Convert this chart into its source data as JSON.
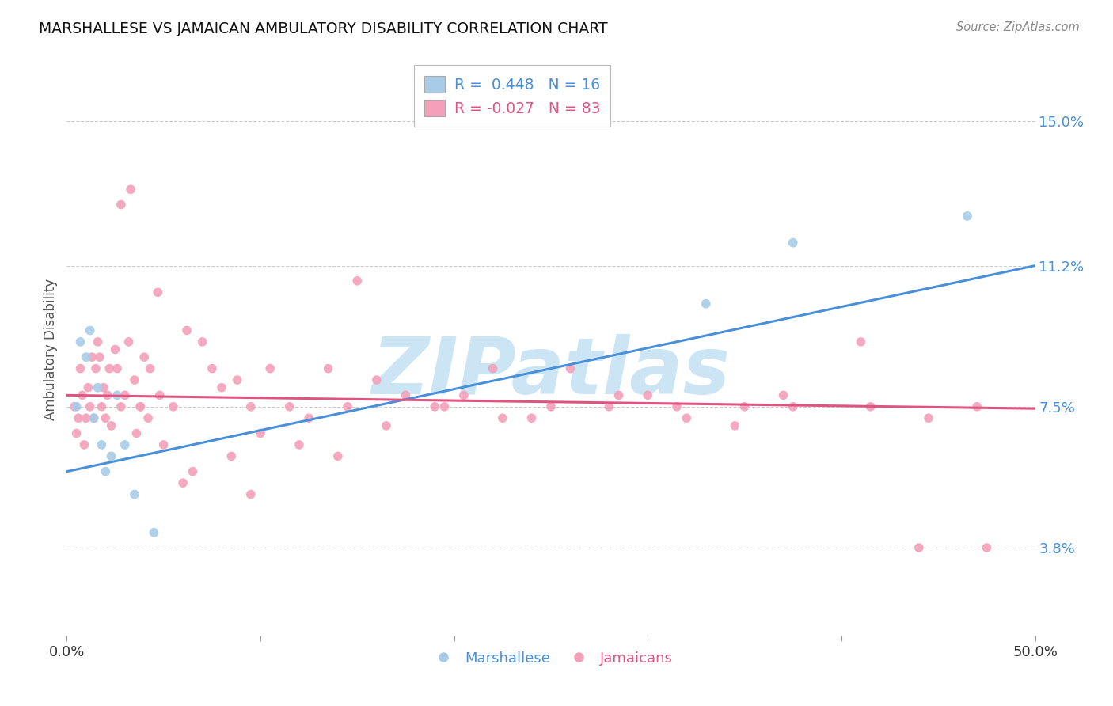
{
  "title": "MARSHALLESE VS JAMAICAN AMBULATORY DISABILITY CORRELATION CHART",
  "source": "Source: ZipAtlas.com",
  "ylabel": "Ambulatory Disability",
  "ytick_values": [
    3.8,
    7.5,
    11.2,
    15.0
  ],
  "xlim": [
    0.0,
    50.0
  ],
  "ylim": [
    1.5,
    16.5
  ],
  "marshallese_color": "#a8cce8",
  "jamaican_color": "#f4a0bb",
  "marshallese_line_color": "#4a90d9",
  "jamaican_line_color": "#e05580",
  "background_color": "#ffffff",
  "grid_color": "#cccccc",
  "watermark_text": "ZIPatlas",
  "watermark_color": "#cce5f5",
  "blue_line_start_y": 5.8,
  "blue_line_end_y": 11.2,
  "pink_line_start_y": 7.8,
  "pink_line_end_y": 7.45,
  "marshallese_x": [
    0.5,
    0.7,
    1.0,
    1.2,
    1.4,
    1.6,
    1.8,
    2.0,
    2.3,
    2.6,
    3.0,
    3.5,
    4.5,
    33.0,
    37.5,
    46.5
  ],
  "marshallese_y": [
    7.5,
    9.2,
    8.8,
    9.5,
    7.2,
    8.0,
    6.5,
    5.8,
    6.2,
    7.8,
    6.5,
    5.2,
    4.2,
    10.2,
    11.8,
    12.5
  ],
  "jamaican_x": [
    0.4,
    0.5,
    0.6,
    0.7,
    0.8,
    0.9,
    1.0,
    1.1,
    1.2,
    1.3,
    1.4,
    1.5,
    1.6,
    1.7,
    1.8,
    1.9,
    2.0,
    2.1,
    2.2,
    2.3,
    2.5,
    2.6,
    2.8,
    3.0,
    3.2,
    3.5,
    3.8,
    4.0,
    4.3,
    4.8,
    5.5,
    6.2,
    7.0,
    7.5,
    8.0,
    8.8,
    9.5,
    10.5,
    11.5,
    12.5,
    13.5,
    14.5,
    16.0,
    17.5,
    19.0,
    20.5,
    22.0,
    24.0,
    26.0,
    28.0,
    30.0,
    32.0,
    35.0,
    37.0,
    41.0,
    44.0,
    47.5,
    3.8,
    3.6,
    4.2,
    5.0,
    6.5,
    8.5,
    10.0,
    12.0,
    14.0,
    16.5,
    19.5,
    22.5,
    25.0,
    28.5,
    31.5,
    34.5,
    37.5,
    41.5,
    44.5,
    47.0,
    6.0,
    9.5,
    2.8,
    3.3,
    4.7,
    15.0
  ],
  "jamaican_y": [
    7.5,
    6.8,
    7.2,
    8.5,
    7.8,
    6.5,
    7.2,
    8.0,
    7.5,
    8.8,
    7.2,
    8.5,
    9.2,
    8.8,
    7.5,
    8.0,
    7.2,
    7.8,
    8.5,
    7.0,
    9.0,
    8.5,
    7.5,
    7.8,
    9.2,
    8.2,
    7.5,
    8.8,
    8.5,
    7.8,
    7.5,
    9.5,
    9.2,
    8.5,
    8.0,
    8.2,
    7.5,
    8.5,
    7.5,
    7.2,
    8.5,
    7.5,
    8.2,
    7.8,
    7.5,
    7.8,
    8.5,
    7.2,
    8.5,
    7.5,
    7.8,
    7.2,
    7.5,
    7.8,
    9.2,
    3.8,
    3.8,
    7.5,
    6.8,
    7.2,
    6.5,
    5.8,
    6.2,
    6.8,
    6.5,
    6.2,
    7.0,
    7.5,
    7.2,
    7.5,
    7.8,
    7.5,
    7.0,
    7.5,
    7.5,
    7.2,
    7.5,
    5.5,
    5.2,
    12.8,
    13.2,
    10.5,
    10.8
  ]
}
